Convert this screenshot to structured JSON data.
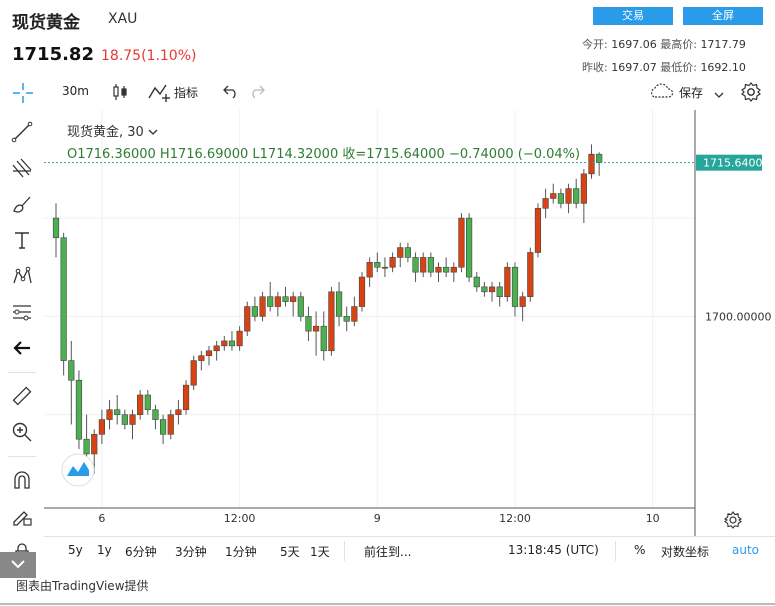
{
  "header": {
    "title": "现货黄金",
    "symbol": "XAU",
    "price": "1715.82",
    "change": "18.75(1.10%)"
  },
  "buttons": {
    "trade": "交易",
    "fullscreen": "全屏"
  },
  "stats": {
    "open_label": "今开:",
    "open": "1697.06",
    "high_label": "最高价:",
    "high": "1717.79",
    "prev_label": "昨收:",
    "prev": "1697.07",
    "low_label": "最低价:",
    "low": "1692.10"
  },
  "toolbar": {
    "interval": "30m",
    "indicators": "指标",
    "save": "保存"
  },
  "legend": {
    "name": "现货黄金, 30",
    "ohlc": "O1716.36000  H1716.69000  L1714.32000  收=1715.64000  −0.74000 (−0.04%)"
  },
  "price_axis": {
    "current_label": "1715.64000",
    "tick_label": "1700.00000"
  },
  "time_axis": [
    "6",
    "12:00",
    "9",
    "12:00",
    "10"
  ],
  "bottom": {
    "ranges": [
      "5y",
      "1y",
      "6分钟",
      "3分钟",
      "1分钟",
      "5天",
      "1天"
    ],
    "goto": "前往到...",
    "clock": "13:18:45 (UTC)",
    "percent": "%",
    "log": "对数坐标",
    "auto": "auto"
  },
  "footer": {
    "credit": "图表由TradingView提供"
  },
  "colors": {
    "up": "#26a69a",
    "down": "#ef5350",
    "up_body": "#4caf50",
    "down_body": "#d84315",
    "accent": "#2a9be9"
  },
  "chart_data": {
    "type": "candlestick",
    "title": "现货黄金, 30",
    "ylim": [
      1680.5,
      1721
    ],
    "current_price": 1715.64,
    "x_ticks": [
      {
        "label": "6",
        "index": 6
      },
      {
        "label": "12:00",
        "index": 24
      },
      {
        "label": "9",
        "index": 42
      },
      {
        "label": "12:00",
        "index": 60
      },
      {
        "label": "10",
        "index": 78
      }
    ],
    "candles": [
      [
        1710.0,
        1711.5,
        1706.0,
        1708.0
      ],
      [
        1708.0,
        1708.5,
        1694.0,
        1695.5
      ],
      [
        1695.5,
        1697.5,
        1689.0,
        1693.5
      ],
      [
        1693.5,
        1694.5,
        1686.5,
        1687.5
      ],
      [
        1687.5,
        1690.0,
        1685.0,
        1686.0
      ],
      [
        1686.0,
        1688.5,
        1684.0,
        1688.0
      ],
      [
        1688.0,
        1690.5,
        1687.0,
        1689.5
      ],
      [
        1689.5,
        1691.5,
        1688.5,
        1690.5
      ],
      [
        1690.5,
        1692.0,
        1689.0,
        1690.0
      ],
      [
        1690.0,
        1690.5,
        1688.5,
        1689.0
      ],
      [
        1689.0,
        1690.5,
        1687.5,
        1690.0
      ],
      [
        1690.0,
        1692.5,
        1689.5,
        1692.0
      ],
      [
        1692.0,
        1692.5,
        1690.0,
        1690.5
      ],
      [
        1690.5,
        1691.0,
        1688.5,
        1689.5
      ],
      [
        1689.5,
        1690.0,
        1687.0,
        1688.0
      ],
      [
        1688.0,
        1690.5,
        1687.5,
        1690.0
      ],
      [
        1690.0,
        1691.5,
        1689.0,
        1690.5
      ],
      [
        1690.5,
        1693.5,
        1690.0,
        1693.0
      ],
      [
        1693.0,
        1696.0,
        1692.5,
        1695.5
      ],
      [
        1695.5,
        1696.5,
        1694.5,
        1696.0
      ],
      [
        1696.0,
        1697.0,
        1695.0,
        1696.5
      ],
      [
        1696.5,
        1697.5,
        1695.5,
        1697.0
      ],
      [
        1697.0,
        1698.0,
        1696.5,
        1697.5
      ],
      [
        1697.5,
        1698.5,
        1696.5,
        1697.0
      ],
      [
        1697.0,
        1699.0,
        1696.5,
        1698.5
      ],
      [
        1698.5,
        1701.5,
        1698.0,
        1701.0
      ],
      [
        1701.0,
        1702.0,
        1699.5,
        1700.0
      ],
      [
        1700.0,
        1702.5,
        1699.5,
        1702.0
      ],
      [
        1702.0,
        1703.5,
        1700.5,
        1701.0
      ],
      [
        1701.0,
        1702.5,
        1700.0,
        1702.0
      ],
      [
        1702.0,
        1703.0,
        1701.0,
        1701.5
      ],
      [
        1701.5,
        1702.5,
        1700.0,
        1702.0
      ],
      [
        1702.0,
        1702.5,
        1699.5,
        1700.0
      ],
      [
        1700.0,
        1701.0,
        1697.5,
        1698.5
      ],
      [
        1698.5,
        1700.5,
        1696.0,
        1699.0
      ],
      [
        1699.0,
        1700.5,
        1695.5,
        1696.5
      ],
      [
        1696.5,
        1703.0,
        1696.0,
        1702.5
      ],
      [
        1702.5,
        1703.5,
        1699.0,
        1700.0
      ],
      [
        1700.0,
        1701.0,
        1698.5,
        1699.5
      ],
      [
        1699.5,
        1702.0,
        1699.0,
        1701.0
      ],
      [
        1701.0,
        1704.5,
        1700.5,
        1704.0
      ],
      [
        1704.0,
        1706.0,
        1703.0,
        1705.5
      ],
      [
        1705.5,
        1706.5,
        1704.5,
        1705.0
      ],
      [
        1705.0,
        1706.0,
        1704.0,
        1705.0
      ],
      [
        1705.0,
        1706.5,
        1704.5,
        1706.0
      ],
      [
        1706.0,
        1707.5,
        1705.0,
        1707.0
      ],
      [
        1707.0,
        1707.5,
        1705.5,
        1706.0
      ],
      [
        1706.0,
        1706.5,
        1703.5,
        1704.5
      ],
      [
        1704.5,
        1706.5,
        1704.0,
        1706.0
      ],
      [
        1706.0,
        1706.5,
        1704.0,
        1704.5
      ],
      [
        1704.5,
        1705.5,
        1703.5,
        1705.0
      ],
      [
        1705.0,
        1706.0,
        1704.0,
        1704.5
      ],
      [
        1704.5,
        1705.5,
        1703.5,
        1705.0
      ],
      [
        1705.0,
        1710.5,
        1704.5,
        1710.0
      ],
      [
        1710.0,
        1710.5,
        1703.5,
        1704.0
      ],
      [
        1704.0,
        1704.5,
        1702.5,
        1703.0
      ],
      [
        1703.0,
        1703.5,
        1702.0,
        1702.5
      ],
      [
        1702.5,
        1703.5,
        1701.5,
        1703.0
      ],
      [
        1703.0,
        1703.5,
        1701.0,
        1702.0
      ],
      [
        1702.0,
        1705.5,
        1701.5,
        1705.0
      ],
      [
        1705.0,
        1705.5,
        1700.0,
        1701.0
      ],
      [
        1701.0,
        1702.5,
        1699.5,
        1702.0
      ],
      [
        1702.0,
        1707.0,
        1701.5,
        1706.5
      ],
      [
        1706.5,
        1711.5,
        1706.0,
        1711.0
      ],
      [
        1711.0,
        1713.0,
        1710.0,
        1712.0
      ],
      [
        1712.0,
        1713.5,
        1711.5,
        1712.5
      ],
      [
        1712.5,
        1713.0,
        1711.0,
        1711.5
      ],
      [
        1711.5,
        1713.5,
        1710.5,
        1713.0
      ],
      [
        1713.0,
        1714.0,
        1711.0,
        1711.5
      ],
      [
        1711.5,
        1715.0,
        1709.5,
        1714.5
      ],
      [
        1714.5,
        1717.5,
        1714.0,
        1716.5
      ],
      [
        1716.5,
        1716.7,
        1714.3,
        1715.64
      ]
    ]
  }
}
